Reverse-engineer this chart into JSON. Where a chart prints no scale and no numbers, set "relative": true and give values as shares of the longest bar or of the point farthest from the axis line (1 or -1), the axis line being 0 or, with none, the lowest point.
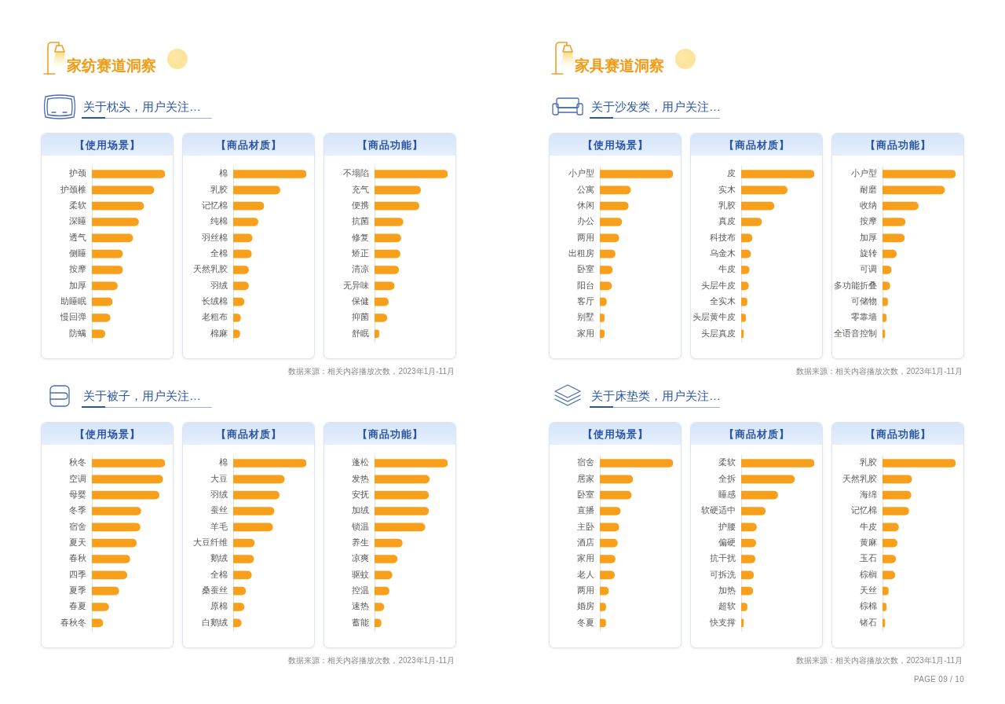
{
  "chart_data": [
    {
      "type": "bar",
      "orientation": "horizontal",
      "relative": true,
      "title": "【使用场景】",
      "subtitle": "关于枕头，用户关注…",
      "annotations": [
        "家纺赛道洞察"
      ],
      "color": "#f8a01c",
      "categories": [
        "护颈",
        "护颈椎",
        "柔软",
        "深睡",
        "透气",
        "侧睡",
        "按摩",
        "加厚",
        "助睡眠",
        "慢回弹",
        "防螨"
      ],
      "values": [
        1,
        0.85,
        0.71,
        0.64,
        0.56,
        0.42,
        0.42,
        0.35,
        0.28,
        0.25,
        0.18
      ]
    },
    {
      "type": "bar",
      "orientation": "horizontal",
      "relative": true,
      "title": "【商品材质】",
      "color": "#f8a01c",
      "categories": [
        "棉",
        "乳胶",
        "记忆棉",
        "纯棉",
        "羽丝棉",
        "全棉",
        "天然乳胶",
        "羽绒",
        "长绒棉",
        "老粗布",
        "棉麻"
      ],
      "values": [
        1,
        0.64,
        0.42,
        0.34,
        0.26,
        0.25,
        0.21,
        0.21,
        0.15,
        0.1,
        0.09
      ]
    },
    {
      "type": "bar",
      "orientation": "horizontal",
      "relative": true,
      "title": "【商品功能】",
      "annotations": [
        "数据来源：相关内容播放次数，2023年1月-11月"
      ],
      "color": "#f8a01c",
      "categories": [
        "不塌陷",
        "充气",
        "便携",
        "抗菌",
        "修复",
        "矫正",
        "清凉",
        "无异味",
        "保健",
        "抑菌",
        "舒眠"
      ],
      "values": [
        1,
        0.63,
        0.61,
        0.39,
        0.36,
        0.35,
        0.33,
        0.27,
        0.19,
        0.17,
        0.06
      ]
    },
    {
      "type": "bar",
      "orientation": "horizontal",
      "relative": true,
      "title": "【使用场景】",
      "subtitle": "关于沙发类，用户关注…",
      "annotations": [
        "家具赛道洞察"
      ],
      "color": "#f8a01c",
      "categories": [
        "小户型",
        "公寓",
        "休闲",
        "办公",
        "两用",
        "出租房",
        "卧室",
        "阳台",
        "客厅",
        "别墅",
        "家用"
      ],
      "values": [
        1,
        0.42,
        0.39,
        0.3,
        0.26,
        0.21,
        0.17,
        0.16,
        0.09,
        0.06,
        0.06
      ]
    },
    {
      "type": "bar",
      "orientation": "horizontal",
      "relative": true,
      "title": "【商品材质】",
      "color": "#f8a01c",
      "categories": [
        "皮",
        "实木",
        "乳胶",
        "真皮",
        "科技布",
        "乌金木",
        "牛皮",
        "头层牛皮",
        "全实木",
        "头层黄牛皮",
        "头层真皮"
      ],
      "values": [
        1,
        0.63,
        0.45,
        0.28,
        0.15,
        0.13,
        0.11,
        0.1,
        0.08,
        0.06,
        0.03
      ]
    },
    {
      "type": "bar",
      "orientation": "horizontal",
      "relative": true,
      "title": "【商品功能】",
      "annotations": [
        "数据来源：相关内容播放次数，2023年1月-11月"
      ],
      "color": "#f8a01c",
      "categories": [
        "小户型",
        "耐磨",
        "收纳",
        "按摩",
        "加厚",
        "旋转",
        "可调",
        "多功能折叠",
        "可储物",
        "零靠墙",
        "全语音控制"
      ],
      "values": [
        1,
        0.85,
        0.49,
        0.31,
        0.3,
        0.19,
        0.12,
        0.1,
        0.07,
        0.05,
        0.03
      ]
    },
    {
      "type": "bar",
      "orientation": "horizontal",
      "relative": true,
      "title": "【使用场景】",
      "subtitle": "关于被子，用户关注…",
      "color": "#f8a01c",
      "categories": [
        "秋冬",
        "空调",
        "母婴",
        "冬季",
        "宿舍",
        "夏天",
        "春秋",
        "四季",
        "夏季",
        "春夏",
        "春秋冬"
      ],
      "values": [
        1,
        0.97,
        0.92,
        0.67,
        0.66,
        0.61,
        0.52,
        0.48,
        0.37,
        0.23,
        0.15
      ]
    },
    {
      "type": "bar",
      "orientation": "horizontal",
      "relative": true,
      "title": "【商品材质】",
      "color": "#f8a01c",
      "categories": [
        "棉",
        "大豆",
        "羽绒",
        "蚕丝",
        "羊毛",
        "大豆纤维",
        "鹅绒",
        "全棉",
        "桑蚕丝",
        "原棉",
        "白鹅绒"
      ],
      "values": [
        1,
        0.7,
        0.63,
        0.56,
        0.54,
        0.29,
        0.28,
        0.25,
        0.17,
        0.15,
        0.11
      ]
    },
    {
      "type": "bar",
      "orientation": "horizontal",
      "relative": true,
      "title": "【商品功能】",
      "annotations": [
        "数据来源：相关内容播放次数，2023年1月-11月"
      ],
      "color": "#f8a01c",
      "categories": [
        "蓬松",
        "发热",
        "安抚",
        "加绒",
        "锁温",
        "养生",
        "凉爽",
        "驱蚊",
        "控温",
        "速热",
        "蓄能"
      ],
      "values": [
        1,
        0.75,
        0.74,
        0.74,
        0.69,
        0.38,
        0.31,
        0.24,
        0.2,
        0.13,
        0.09
      ]
    },
    {
      "type": "bar",
      "orientation": "horizontal",
      "relative": true,
      "title": "【使用场景】",
      "subtitle": "关于床垫类，用户关注…",
      "color": "#f8a01c",
      "categories": [
        "宿舍",
        "居家",
        "卧室",
        "直播",
        "主卧",
        "酒店",
        "家用",
        "老人",
        "两用",
        "婚房",
        "冬夏"
      ],
      "values": [
        1,
        0.45,
        0.43,
        0.28,
        0.26,
        0.24,
        0.21,
        0.2,
        0.12,
        0.08,
        0.08
      ]
    },
    {
      "type": "bar",
      "orientation": "horizontal",
      "relative": true,
      "title": "【商品材质】",
      "color": "#f8a01c",
      "categories": [
        "柔软",
        "全拆",
        "睡感",
        "软硬适中",
        "护腰",
        "偏硬",
        "抗干扰",
        "可拆洗",
        "加热",
        "超软",
        "快支撑"
      ],
      "values": [
        1,
        0.73,
        0.5,
        0.33,
        0.21,
        0.2,
        0.19,
        0.17,
        0.16,
        0.08,
        0.03
      ]
    },
    {
      "type": "bar",
      "orientation": "horizontal",
      "relative": true,
      "title": "【商品功能】",
      "annotations": [
        "数据来源：相关内容播放次数，2023年1月-11月",
        "PAGE 09 / 10"
      ],
      "color": "#f8a01c",
      "categories": [
        "乳胶",
        "天然乳胶",
        "海绵",
        "记忆棉",
        "牛皮",
        "黄麻",
        "玉石",
        "棕榈",
        "天丝",
        "棕棉",
        "锗石"
      ],
      "values": [
        1,
        0.4,
        0.39,
        0.36,
        0.22,
        0.2,
        0.18,
        0.17,
        0.08,
        0.05,
        0.03
      ]
    }
  ]
}
